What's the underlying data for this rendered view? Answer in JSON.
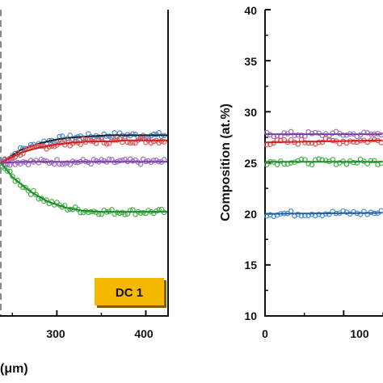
{
  "chart_data": [
    {
      "type": "scatter",
      "panel": "left",
      "xlabel": "(μm)",
      "xlim": [
        237,
        425
      ],
      "ylim": [
        10,
        40
      ],
      "xticks": [
        300,
        400
      ],
      "xtick_labels": [
        "300",
        "400"
      ],
      "dashed_vline_x": 237,
      "badge": "DC 1",
      "badge_color": "#F5B800",
      "series": [
        {
          "color": "#4A8CD0",
          "values_x": [
            237,
            260,
            280,
            300,
            320,
            340,
            360,
            380,
            400,
            425
          ],
          "values_y": [
            25.0,
            26.3,
            26.9,
            27.3,
            27.5,
            27.6,
            27.7,
            27.7,
            27.7,
            27.7
          ],
          "fit_color": "#222222"
        },
        {
          "color": "#E0595A",
          "values_x": [
            237,
            260,
            280,
            300,
            320,
            340,
            360,
            380,
            400,
            425
          ],
          "values_y": [
            25.0,
            26.0,
            26.5,
            26.8,
            27.0,
            27.1,
            27.1,
            27.2,
            27.2,
            27.2
          ],
          "fit_color": "#D42020"
        },
        {
          "color": "#A070C0",
          "values_x": [
            237,
            260,
            280,
            300,
            320,
            340,
            360,
            380,
            400,
            425
          ],
          "values_y": [
            25.0,
            25.1,
            25.1,
            25.1,
            25.1,
            25.1,
            25.1,
            25.1,
            25.1,
            25.1
          ],
          "fit_color": "#7B3FA8"
        },
        {
          "color": "#4CAF50",
          "values_x": [
            237,
            250,
            270,
            290,
            310,
            330,
            350,
            370,
            390,
            410,
            425
          ],
          "values_y": [
            25.0,
            23.6,
            22.2,
            21.2,
            20.6,
            20.3,
            20.2,
            20.2,
            20.2,
            20.2,
            20.2
          ],
          "fit_color": "#1E8C2A"
        }
      ]
    },
    {
      "type": "scatter",
      "panel": "right",
      "ylabel": "Composition (at.%)",
      "xlim": [
        0,
        150
      ],
      "ylim": [
        10,
        40
      ],
      "xticks": [
        0,
        100
      ],
      "xtick_labels": [
        "0",
        "100"
      ],
      "yticks": [
        10,
        15,
        20,
        25,
        30,
        35,
        40
      ],
      "ytick_labels": [
        "10",
        "15",
        "20",
        "25",
        "30",
        "35",
        "40"
      ],
      "series": [
        {
          "color": "#A070C0",
          "values_x": [
            0,
            150
          ],
          "values_y": [
            27.8,
            27.8
          ],
          "fit_color": "#7B3FA8"
        },
        {
          "color": "#E0595A",
          "values_x": [
            0,
            150
          ],
          "values_y": [
            27.0,
            27.2
          ],
          "fit_color": "#D42020"
        },
        {
          "color": "#4CAF50",
          "values_x": [
            0,
            150
          ],
          "values_y": [
            25.1,
            25.1
          ],
          "fit_color": "#1E8C2A"
        },
        {
          "color": "#4A8CD0",
          "values_x": [
            0,
            150
          ],
          "values_y": [
            20.0,
            20.1
          ],
          "fit_color": "#1F5FA8"
        }
      ]
    }
  ]
}
